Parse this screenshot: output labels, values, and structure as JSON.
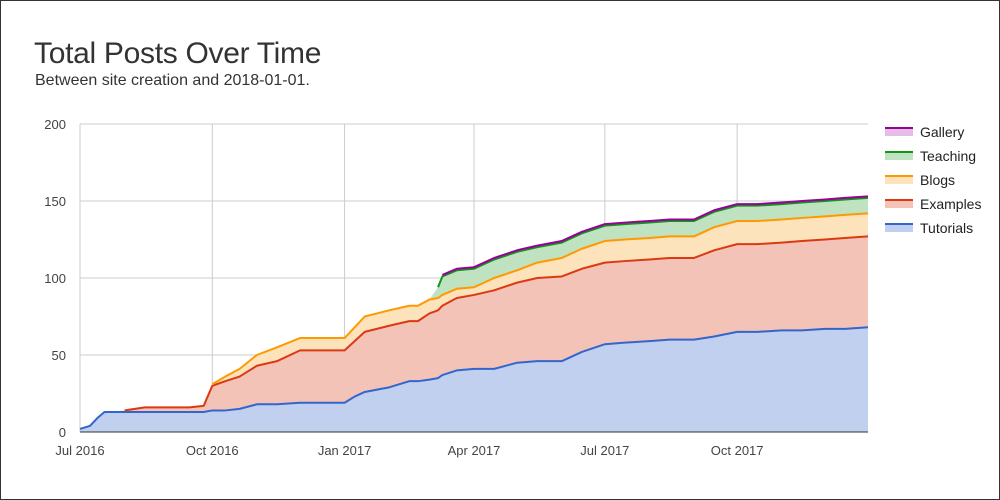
{
  "title": "Total Posts Over Time",
  "subtitle": "Between site creation and 2018-01-01.",
  "chart_data": {
    "type": "area",
    "stacked": true,
    "x_type": "date",
    "x_domain": [
      "2016-07-01",
      "2017-12-31"
    ],
    "ylim": [
      0,
      200
    ],
    "y_ticks": [
      0,
      50,
      100,
      150,
      200
    ],
    "x_tick_labels": [
      {
        "date": "2016-07-01",
        "label": "Jul 2016"
      },
      {
        "date": "2016-10-01",
        "label": "Oct 2016"
      },
      {
        "date": "2017-01-01",
        "label": "Jan 2017"
      },
      {
        "date": "2017-04-01",
        "label": "Apr 2017"
      },
      {
        "date": "2017-07-01",
        "label": "Jul 2017"
      },
      {
        "date": "2017-10-01",
        "label": "Oct 2017"
      }
    ],
    "grid": true,
    "legend_position": "right",
    "x": [
      "2016-07-01",
      "2016-07-08",
      "2016-07-13",
      "2016-07-18",
      "2016-08-01",
      "2016-08-15",
      "2016-08-22",
      "2016-09-01",
      "2016-09-15",
      "2016-09-25",
      "2016-10-01",
      "2016-10-10",
      "2016-10-20",
      "2016-11-01",
      "2016-11-15",
      "2016-12-01",
      "2016-12-15",
      "2016-12-25",
      "2017-01-01",
      "2017-01-08",
      "2017-01-15",
      "2017-02-01",
      "2017-02-15",
      "2017-02-21",
      "2017-03-01",
      "2017-03-07",
      "2017-03-10",
      "2017-03-20",
      "2017-04-01",
      "2017-04-15",
      "2017-05-01",
      "2017-05-15",
      "2017-06-01",
      "2017-06-15",
      "2017-07-01",
      "2017-07-15",
      "2017-08-01",
      "2017-08-15",
      "2017-09-01",
      "2017-09-15",
      "2017-10-01",
      "2017-10-15",
      "2017-11-01",
      "2017-11-15",
      "2017-12-01",
      "2017-12-15",
      "2017-12-31"
    ],
    "series": [
      {
        "name": "Tutorials",
        "color": "#3366cc",
        "fill": "#c2d0ef",
        "values": [
          2,
          4,
          9,
          13,
          13,
          13,
          13,
          13,
          13,
          13,
          14,
          14,
          15,
          18,
          18,
          19,
          19,
          19,
          19,
          23,
          26,
          29,
          33,
          33,
          34,
          35,
          37,
          40,
          41,
          41,
          45,
          46,
          46,
          52,
          57,
          58,
          59,
          60,
          60,
          62,
          65,
          65,
          66,
          66,
          67,
          67,
          68
        ]
      },
      {
        "name": "Examples",
        "color": "#dc3912",
        "fill": "#f3c3b8",
        "values": [
          0,
          0,
          0,
          0,
          1,
          3,
          3,
          3,
          3,
          4,
          16,
          19,
          21,
          25,
          28,
          34,
          34,
          34,
          34,
          36,
          39,
          40,
          39,
          39,
          43,
          44,
          45,
          47,
          48,
          51,
          52,
          54,
          55,
          54,
          53,
          53,
          53,
          53,
          53,
          56,
          57,
          57,
          57,
          58,
          58,
          59,
          59
        ]
      },
      {
        "name": "Blogs",
        "color": "#ff9900",
        "fill": "#fde3bb",
        "values": [
          0,
          0,
          0,
          0,
          0,
          0,
          0,
          0,
          0,
          0,
          1,
          3,
          5,
          7,
          9,
          8,
          8,
          8,
          8,
          9,
          10,
          10,
          10,
          10,
          9,
          8,
          7,
          6,
          5,
          8,
          8,
          10,
          12,
          13,
          14,
          14,
          14,
          14,
          14,
          15,
          15,
          15,
          15,
          15,
          15,
          15,
          15
        ]
      },
      {
        "name": "Teaching",
        "color": "#109618",
        "fill": "#bfe3c0",
        "values": [
          0,
          0,
          0,
          0,
          0,
          0,
          0,
          0,
          0,
          0,
          0,
          0,
          0,
          0,
          0,
          0,
          0,
          0,
          0,
          0,
          0,
          0,
          0,
          0,
          0,
          7,
          12,
          12,
          12,
          12,
          12,
          10,
          10,
          10,
          10,
          10,
          10,
          10,
          10,
          10,
          10,
          10,
          10,
          10,
          10,
          10,
          10
        ]
      },
      {
        "name": "Gallery",
        "color": "#990099",
        "fill": "#e5bde5",
        "values": [
          0,
          0,
          0,
          0,
          0,
          0,
          0,
          0,
          0,
          0,
          0,
          0,
          0,
          0,
          0,
          0,
          0,
          0,
          0,
          0,
          0,
          0,
          0,
          0,
          0,
          0,
          1,
          1,
          1,
          1,
          1,
          1,
          1,
          1,
          1,
          1,
          1,
          1,
          1,
          1,
          1,
          1,
          1,
          1,
          1,
          1,
          1
        ]
      }
    ],
    "legend_order": [
      "Gallery",
      "Teaching",
      "Blogs",
      "Examples",
      "Tutorials"
    ]
  }
}
